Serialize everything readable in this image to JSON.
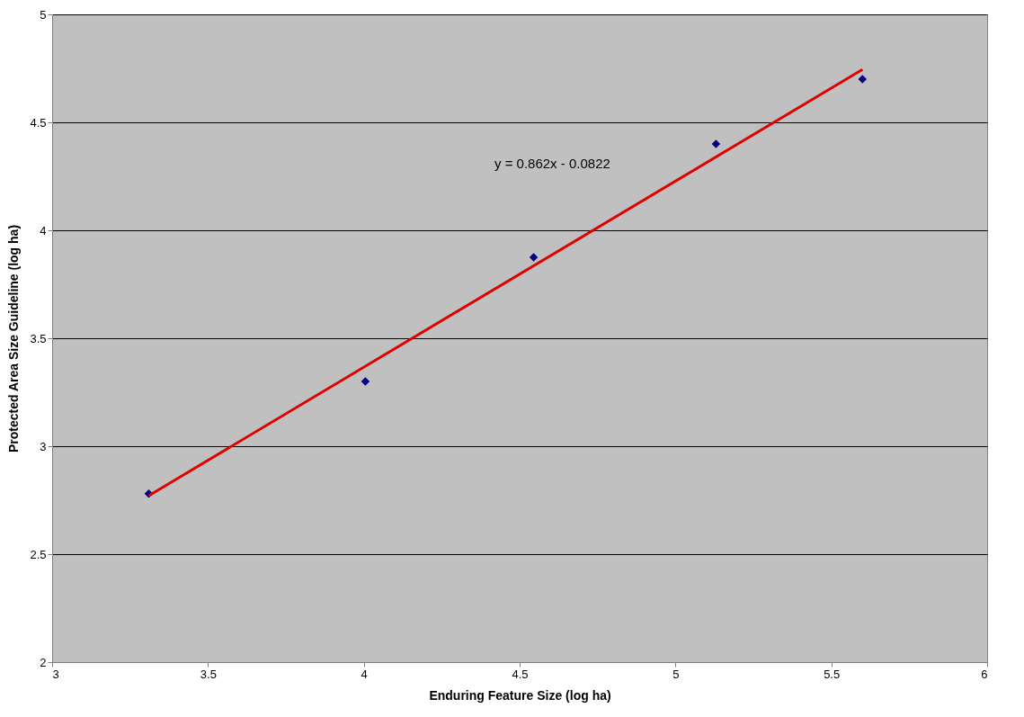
{
  "chart_data": {
    "type": "scatter",
    "xlabel": "Enduring Feature Size (log ha)",
    "ylabel": "Protected Area Size Guideline (log ha)",
    "series": [
      {
        "color": "#000080",
        "marker": "diamond",
        "x": [
          3.31,
          4.005,
          4.545,
          5.13,
          5.6
        ],
        "values": [
          2.78,
          3.3,
          3.875,
          4.4,
          4.7
        ]
      },
      {
        "type": "line",
        "color": "#e00000",
        "marker": "none",
        "x": [
          3.31,
          5.6
        ],
        "values": [
          2.771,
          4.745
        ]
      }
    ],
    "xlim": [
      3,
      6
    ],
    "xticks": [
      3,
      3.5,
      4,
      4.5,
      5,
      5.5,
      6
    ],
    "ylim": [
      2,
      5
    ],
    "yticks": [
      2,
      2.5,
      3,
      3.5,
      4,
      4.5,
      5
    ],
    "grid": "y",
    "annotations": [
      "y = 0.862x - 0.0822"
    ]
  }
}
